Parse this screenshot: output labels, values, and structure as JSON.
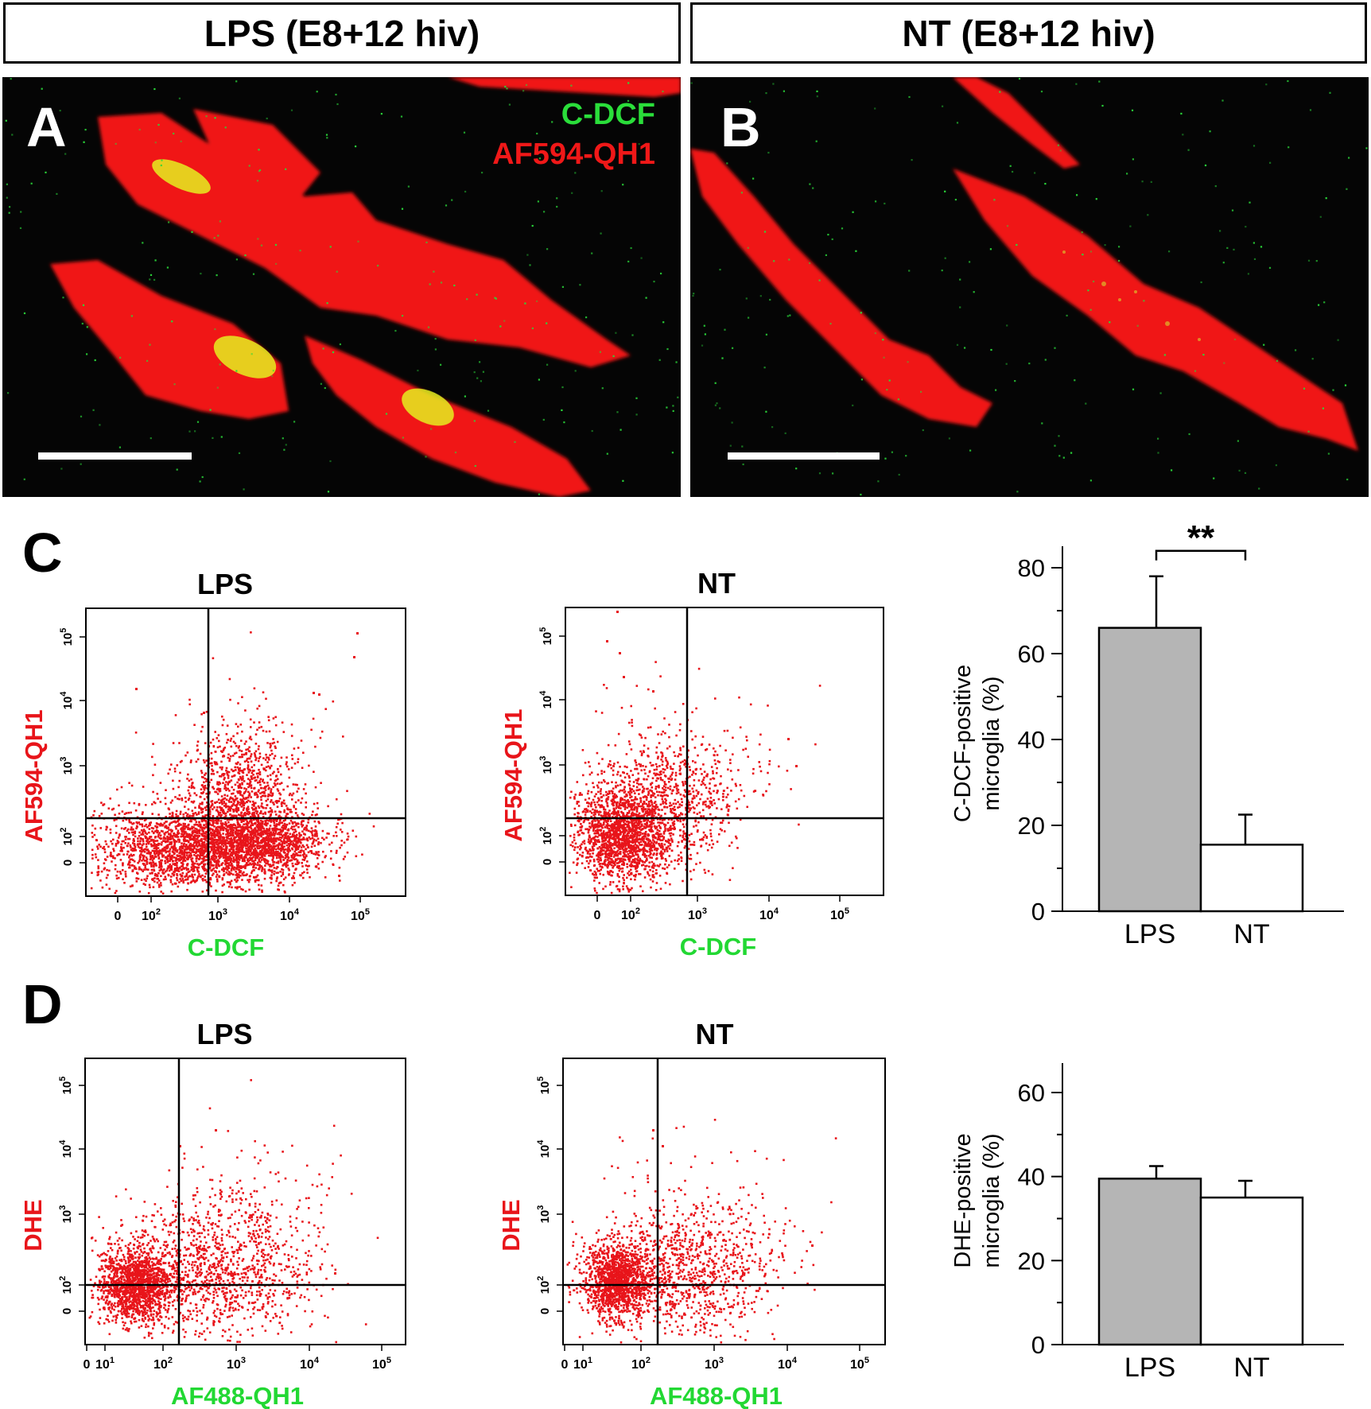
{
  "colors": {
    "red": "#e8141a",
    "green": "#22d833",
    "gray_bar": "#b5b5b5",
    "ink": "#000000"
  },
  "headers": {
    "left": "LPS (E8+12 hiv)",
    "right": "NT (E8+12 hiv)"
  },
  "micrographs": {
    "a": {
      "label": "A",
      "channel_green": "C-DCF",
      "channel_red": "AF594-QH1"
    },
    "b": {
      "label": "B"
    }
  },
  "panel_c": {
    "label": "C",
    "flow_plots": [
      {
        "title": "LPS",
        "xlabel": "C-DCF",
        "ylabel": "AF594-QH1"
      },
      {
        "title": "NT",
        "xlabel": "C-DCF",
        "ylabel": "AF594-QH1"
      }
    ],
    "bar": {
      "ylabel_line1": "C-DCF-positive",
      "ylabel_line2": "microglia (%)",
      "significance": "**"
    }
  },
  "panel_d": {
    "label": "D",
    "flow_plots": [
      {
        "title": "LPS",
        "xlabel": "AF488-QH1",
        "ylabel": "DHE"
      },
      {
        "title": "NT",
        "xlabel": "AF488-QH1",
        "ylabel": "DHE"
      }
    ],
    "bar": {
      "ylabel_line1": "DHE-positive",
      "ylabel_line2": "microglia (%)"
    }
  },
  "flow_ticks": {
    "zero": "0",
    "base": "10",
    "exps": [
      "2",
      "3",
      "4",
      "5"
    ],
    "first_exp_d": "1"
  },
  "chart_data": [
    {
      "type": "bar",
      "panel": "C",
      "categories": [
        "LPS",
        "NT"
      ],
      "values": [
        66,
        15.5
      ],
      "errors": [
        12,
        7
      ],
      "ylabel": "C-DCF-positive microglia (%)",
      "ylim": [
        0,
        85
      ],
      "yticks": [
        0,
        20,
        40,
        60,
        80
      ],
      "annotation": "**"
    },
    {
      "type": "bar",
      "panel": "D",
      "categories": [
        "LPS",
        "NT"
      ],
      "values": [
        39.5,
        35
      ],
      "errors": [
        3,
        4
      ],
      "ylabel": "DHE-positive microglia (%)",
      "ylim": [
        0,
        67
      ],
      "yticks": [
        0,
        20,
        40,
        60
      ]
    }
  ]
}
